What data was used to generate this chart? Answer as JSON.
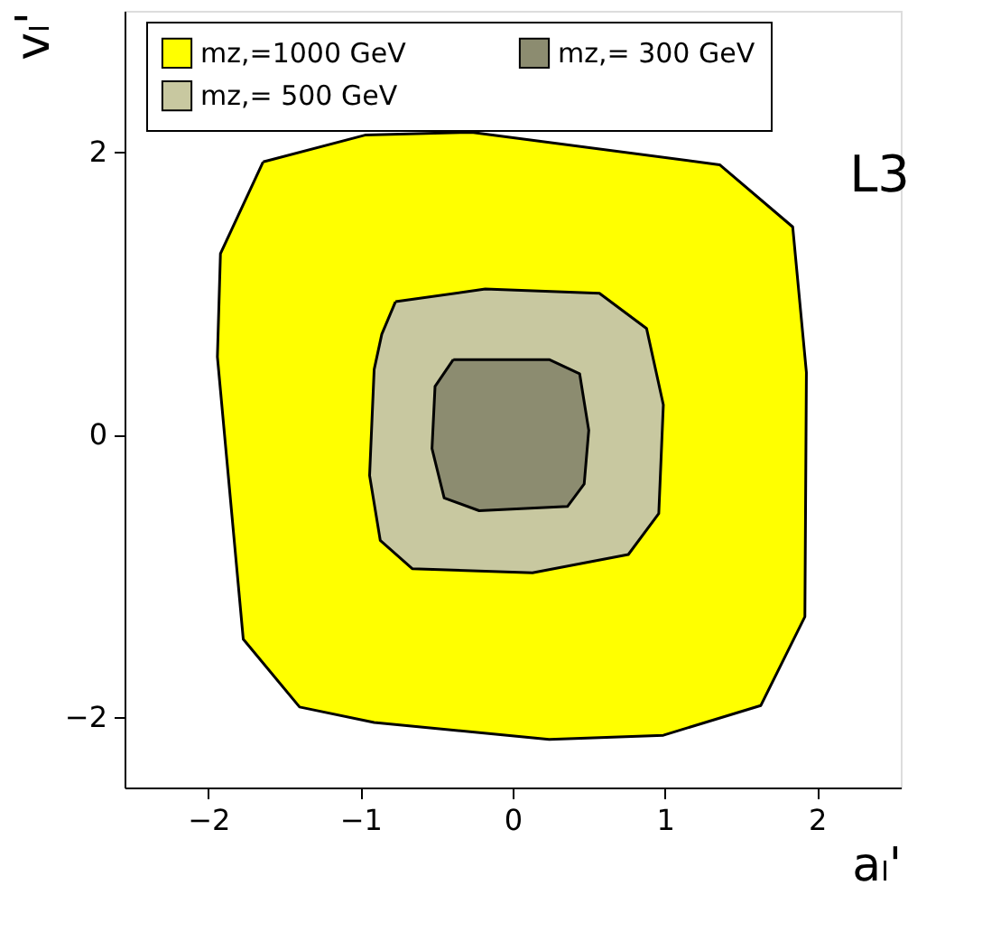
{
  "chart_data": {
    "type": "area",
    "xlabel": "aₗ'",
    "ylabel": "vₗ'",
    "xlim": [
      -2.55,
      2.55
    ],
    "ylim": [
      -2.5,
      3.0
    ],
    "xticks": [
      -2,
      -1,
      0,
      1,
      2
    ],
    "yticks": [
      -2,
      0,
      2
    ],
    "grid": false,
    "legend": "top",
    "annotations": [
      "L3"
    ],
    "series": [
      {
        "name": "mz,=1000 GeV",
        "color": "#ffff00",
        "x": [
          -1.64,
          -0.97,
          -0.27,
          1.36,
          1.84,
          1.93,
          1.92,
          1.63,
          0.99,
          0.24,
          -0.91,
          -1.4,
          -1.77,
          -1.94,
          -1.92
        ],
        "values": [
          1.93,
          2.12,
          2.14,
          1.91,
          1.47,
          0.44,
          -1.29,
          -1.92,
          -2.13,
          -2.16,
          -2.04,
          -1.93,
          -1.45,
          0.55,
          1.28
        ]
      },
      {
        "name": "mz,= 500 GeV",
        "color": "#c8c8a0",
        "x": [
          -0.77,
          -0.18,
          0.57,
          0.88,
          0.99,
          0.96,
          0.76,
          0.13,
          -0.66,
          -0.87,
          -0.94,
          -0.91,
          -0.86
        ],
        "values": [
          0.94,
          1.03,
          1.0,
          0.75,
          0.21,
          -0.56,
          -0.85,
          -0.98,
          -0.95,
          -0.75,
          -0.29,
          0.46,
          0.71
        ]
      },
      {
        "name": "mz,= 300 GeV",
        "color": "#8c8c70",
        "x": [
          -0.39,
          0.24,
          0.44,
          0.5,
          0.47,
          0.36,
          -0.22,
          -0.45,
          -0.53,
          -0.51
        ],
        "values": [
          0.53,
          0.53,
          0.43,
          0.03,
          -0.35,
          -0.51,
          -0.54,
          -0.45,
          -0.1,
          0.34
        ]
      }
    ]
  }
}
